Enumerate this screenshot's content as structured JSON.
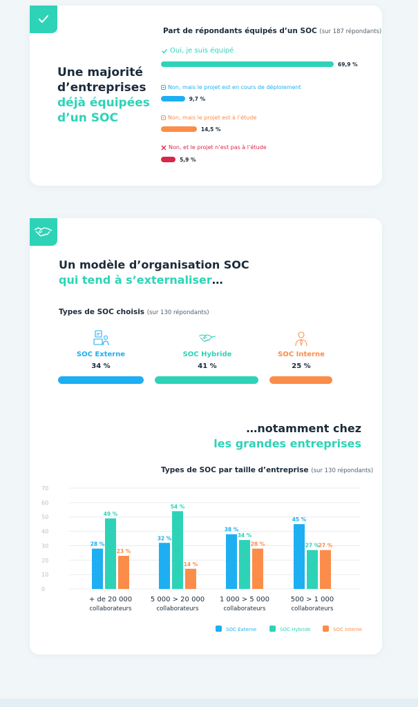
{
  "colors": {
    "teal": "#2ed3b7",
    "blue": "#1eaef2",
    "orange": "#fb8c4a",
    "red": "#d9264a",
    "dark": "#1b2b3a"
  },
  "section1": {
    "badge_icon": "check-icon",
    "headline_line1": "Une majorité",
    "headline_line2": "d’entreprises",
    "headline_teal1": "déjà équipées",
    "headline_teal2": "d’un SOC",
    "subtitle": "Part de répondants équipés d’un SOC",
    "subtitle_note": "(sur 187 répondants)",
    "options": [
      {
        "icon": "check-icon",
        "label": "Oui, je suis équipé",
        "value": 69.9,
        "display": "69,9 %",
        "color": "#2ed3b7"
      },
      {
        "icon": "minus-square-icon",
        "label": "Non, mais le projet est en cours de déploiement",
        "value": 9.7,
        "display": "9,7 %",
        "color": "#1eaef2"
      },
      {
        "icon": "minus-square-icon",
        "label": "Non, mais le projet est à l’étude",
        "value": 14.5,
        "display": "14,5 %",
        "color": "#fb8c4a"
      },
      {
        "icon": "x-icon",
        "label": "Non, et le projet n’est pas à l’étude",
        "value": 5.9,
        "display": "5,9 %",
        "color": "#d9264a"
      }
    ]
  },
  "section2": {
    "badge_icon": "handshake-icon",
    "headline_line1": "Un modèle d’organisation SOC",
    "headline_teal": "qui tend à s’externaliser",
    "headline_suffix": "…",
    "types_title": "Types de SOC choisis",
    "types_note": "(sur 130 répondants)",
    "types": [
      {
        "icon": "external-soc-icon",
        "name": "SOC Externe",
        "value": 34,
        "display": "34 %",
        "color": "#1eaef2"
      },
      {
        "icon": "handshake-icon",
        "name": "SOC Hybride",
        "value": 41,
        "display": "41 %",
        "color": "#2ed3b7"
      },
      {
        "icon": "person-icon",
        "name": "SOC Interne",
        "value": 25,
        "display": "25 %",
        "color": "#fb8c4a"
      }
    ],
    "headline2_line1": "…notamment chez",
    "headline2_teal": "les grandes entreprises",
    "chart_title": "Types de SOC par taille d’entreprise",
    "chart_note": "(sur 130 répondants)"
  },
  "chart_data": {
    "type": "bar",
    "categories": [
      [
        "+ de 20 000",
        "collaborateurs"
      ],
      [
        "5 000 > 20 000",
        "collaborateurs"
      ],
      [
        "1 000 > 5 000",
        "collaborateurs"
      ],
      [
        "500 > 1 000",
        "collaborateurs"
      ]
    ],
    "series": [
      {
        "name": "SOC Externe",
        "color": "#1eaef2",
        "values": [
          28,
          32,
          38,
          45
        ],
        "labels": [
          "28 %",
          "32 %",
          "38 %",
          "45 %"
        ]
      },
      {
        "name": "SOC Hybride",
        "color": "#2ed3b7",
        "values": [
          49,
          54,
          34,
          27
        ],
        "labels": [
          "49 %",
          "54 %",
          "34 %",
          "27 %"
        ]
      },
      {
        "name": "SOC Interne",
        "color": "#fb8c4a",
        "values": [
          23,
          14,
          28,
          27
        ],
        "labels": [
          "23 %",
          "14 %",
          "28 %",
          "27 %"
        ]
      }
    ],
    "ylim": [
      0,
      70
    ],
    "yticks": [
      0,
      10,
      20,
      30,
      40,
      50,
      60,
      70
    ],
    "grid": true,
    "legend": "bottom-right"
  }
}
